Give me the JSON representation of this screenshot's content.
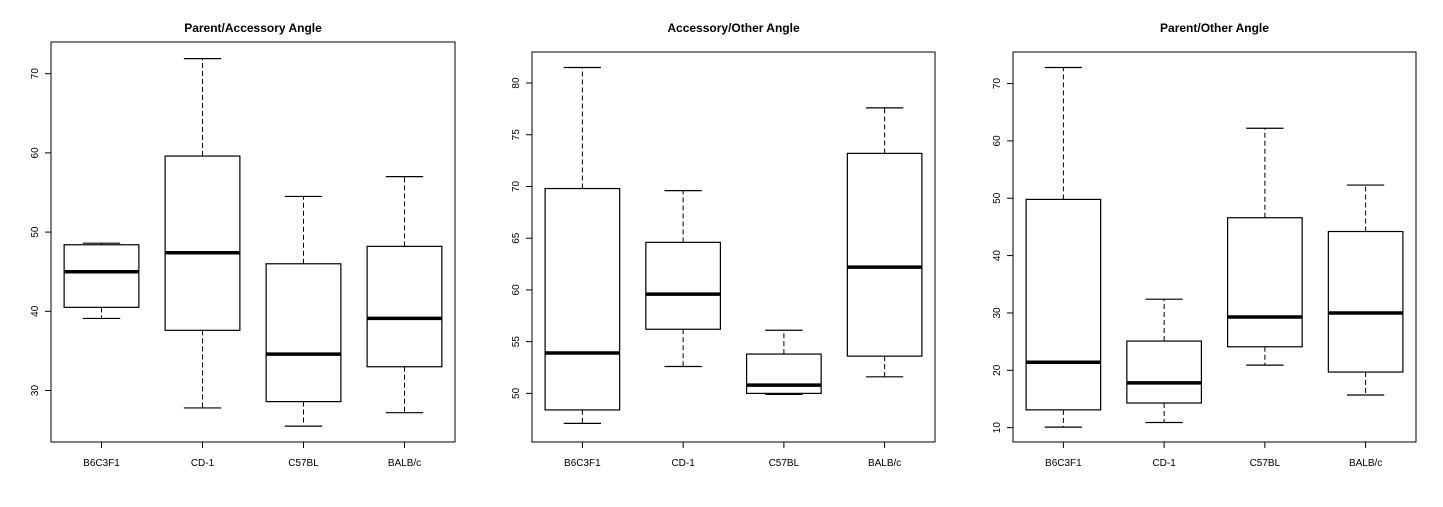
{
  "chart_data": [
    {
      "type": "boxplot",
      "title": "Parent/Accessory Angle",
      "xlabel": "",
      "ylabel": "",
      "categories": [
        "B6C3F1",
        "CD-1",
        "C57BL",
        "BALB/c"
      ],
      "ylim": [
        23.5,
        74
      ],
      "yticks": [
        30,
        40,
        50,
        60,
        70
      ],
      "boxes": [
        {
          "min": 39.1,
          "q1": 40.5,
          "median": 45.0,
          "q3": 48.4,
          "max": 48.6
        },
        {
          "min": 27.8,
          "q1": 37.6,
          "median": 47.4,
          "q3": 59.6,
          "max": 71.9
        },
        {
          "min": 25.5,
          "q1": 28.6,
          "median": 34.6,
          "q3": 46.0,
          "max": 54.5
        },
        {
          "min": 27.2,
          "q1": 33.0,
          "median": 39.1,
          "q3": 48.2,
          "max": 57.0
        }
      ]
    },
    {
      "type": "boxplot",
      "title": "Accessory/Other Angle",
      "xlabel": "",
      "ylabel": "",
      "categories": [
        "B6C3F1",
        "CD-1",
        "C57BL",
        "BALB/c"
      ],
      "ylim": [
        45.3,
        83
      ],
      "yticks": [
        50,
        55,
        60,
        65,
        70,
        75,
        80
      ],
      "boxes": [
        {
          "min": 47.1,
          "q1": 48.4,
          "median": 53.9,
          "q3": 69.8,
          "max": 81.5
        },
        {
          "min": 52.6,
          "q1": 56.2,
          "median": 59.6,
          "q3": 64.6,
          "max": 69.6
        },
        {
          "min": 49.9,
          "q1": 50.0,
          "median": 50.8,
          "q3": 53.8,
          "max": 56.1
        },
        {
          "min": 51.6,
          "q1": 53.6,
          "median": 62.2,
          "q3": 73.2,
          "max": 77.6
        }
      ]
    },
    {
      "type": "boxplot",
      "title": "Parent/Other Angle",
      "xlabel": "",
      "ylabel": "",
      "categories": [
        "B6C3F1",
        "CD-1",
        "C57BL",
        "BALB/c"
      ],
      "ylim": [
        7.5,
        75.5
      ],
      "yticks": [
        10,
        20,
        30,
        40,
        50,
        60,
        70
      ],
      "boxes": [
        {
          "min": 10.1,
          "q1": 13.1,
          "median": 21.4,
          "q3": 49.8,
          "max": 72.8
        },
        {
          "min": 10.9,
          "q1": 14.3,
          "median": 17.8,
          "q3": 25.1,
          "max": 32.4
        },
        {
          "min": 20.9,
          "q1": 24.1,
          "median": 29.3,
          "q3": 46.6,
          "max": 62.2
        },
        {
          "min": 15.7,
          "q1": 19.7,
          "median": 30.0,
          "q3": 44.2,
          "max": 52.3
        }
      ]
    }
  ]
}
